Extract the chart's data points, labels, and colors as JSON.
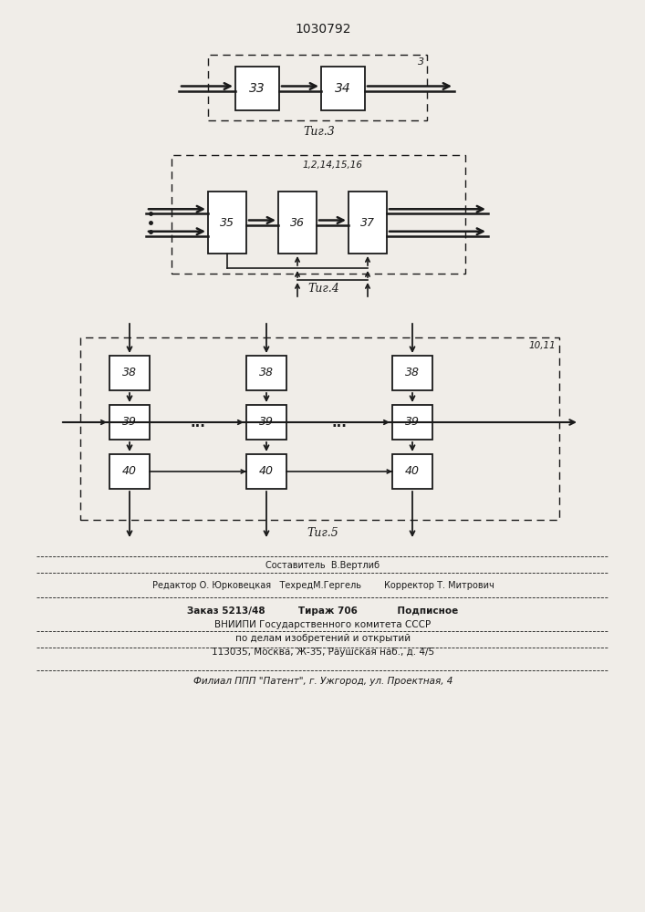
{
  "title": "1030792",
  "fig3_caption": "Τиг.3",
  "fig4_caption": "Τиг.4",
  "fig5_caption": "Τиг.5",
  "box33": "33",
  "box34": "34",
  "box35": "35",
  "box36": "36",
  "box37": "37",
  "box38": "38",
  "box39": "39",
  "box40": "40",
  "label_3": "3",
  "label_10_11": "10,11",
  "label_1_2_14_15_16": "1,2,14,15,16",
  "footer_line1": "Составитель  В.Вертлиб",
  "footer_line2": "Редактор О. Юрковецкая   ТехредМ.Гергель        Корректор Т. Митрович",
  "footer_line3": "Заказ 5213/48          Тираж 706            Подписное",
  "footer_line4": "ВНИИПИ Государственного комитета СССР",
  "footer_line5": "по делам изобретений и открытий",
  "footer_line6": "113035, Москва, Ж-35, Раушская наб., д. 4/5",
  "footer_line7": "Филиал ППП \"Патент\", г. Ужгород, ул. Проектная, 4",
  "bg_color": "#f0ede8",
  "line_color": "#1a1a1a"
}
